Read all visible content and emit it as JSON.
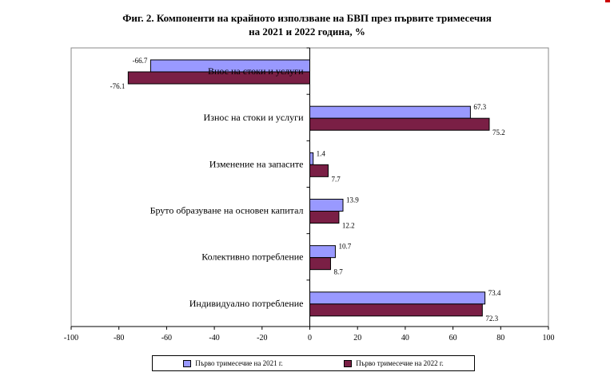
{
  "chart_data": {
    "type": "bar",
    "orientation": "horizontal",
    "title_line1": "Фиг. 2. Компоненти на крайното използване на БВП през първите тримесечия",
    "title_line2": "на 2021 и 2022 година, %",
    "categories": [
      "Внос на стоки и услуги",
      "Износ на стоки и услуги",
      "Изменение на запасите",
      "Бруто образуване на основен капитал",
      "Колективно потребление",
      "Индивидуално потребление"
    ],
    "series": [
      {
        "name": "Първо тримесечие на 2021 г.",
        "color": "#9999ff",
        "values": [
          -66.7,
          67.3,
          1.4,
          13.9,
          10.7,
          73.4
        ],
        "labels": [
          "-66.7",
          "67.3",
          "1.4",
          "13.9",
          "10.7",
          "73.4"
        ]
      },
      {
        "name": "Първо тримесечие на 2022 г.",
        "color": "#7a1f45",
        "values": [
          -76.1,
          75.2,
          7.7,
          12.2,
          8.7,
          72.3
        ],
        "labels": [
          "-76.1",
          "75.2",
          "7.7",
          "12.2",
          "8.7",
          "72.3"
        ]
      }
    ],
    "xlim": [
      -100,
      100
    ],
    "xticks": [
      -100,
      -80,
      -60,
      -40,
      -20,
      0,
      20,
      40,
      60,
      80,
      100
    ],
    "xtick_labels": [
      "-100",
      "-80",
      "-60",
      "-40",
      "-20",
      "0",
      "20",
      "40",
      "60",
      "80",
      "100"
    ],
    "grid": false,
    "legend_position": "bottom"
  }
}
